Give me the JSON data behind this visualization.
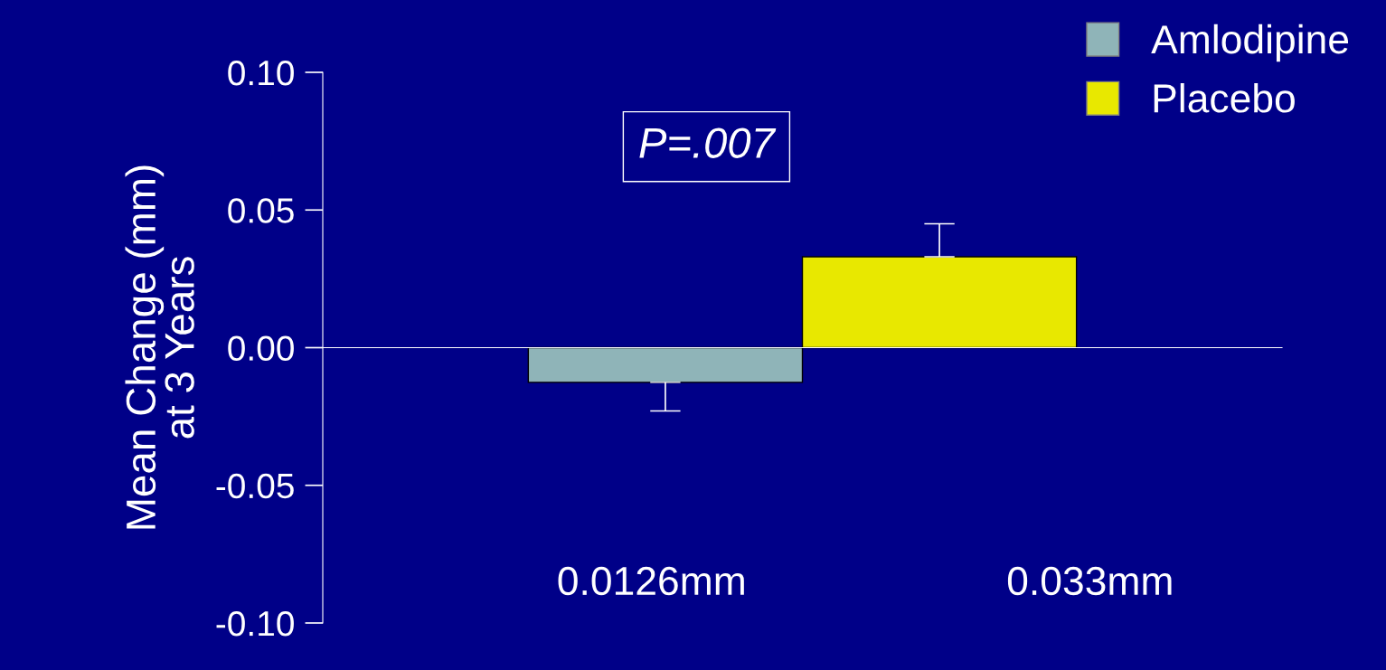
{
  "chart_data": {
    "type": "bar",
    "ylabel": "Mean Change (mm)\nat 3 Years",
    "categories": [
      null
    ],
    "series": [
      {
        "name": "Amlodipine",
        "color": "#8fb4b8",
        "values": [
          -0.0126
        ],
        "errors": [
          [
            -0.023,
            -0.0126
          ]
        ]
      },
      {
        "name": "Placebo",
        "color": "#e8e800",
        "values": [
          0.033
        ],
        "errors": [
          [
            0.033,
            0.045
          ]
        ]
      }
    ],
    "ylim": [
      -0.1,
      0.1
    ],
    "yticks": [
      {
        "value": -0.1,
        "label": "-0.10"
      },
      {
        "value": -0.05,
        "label": "-0.05"
      },
      {
        "value": 0,
        "label": "0.00"
      },
      {
        "value": 0.05,
        "label": "0.05"
      },
      {
        "value": 0.1,
        "label": "0.10"
      }
    ],
    "annotations": [
      "P=.007",
      "0.0126mm",
      "0.033mm"
    ],
    "legend": "top right"
  }
}
